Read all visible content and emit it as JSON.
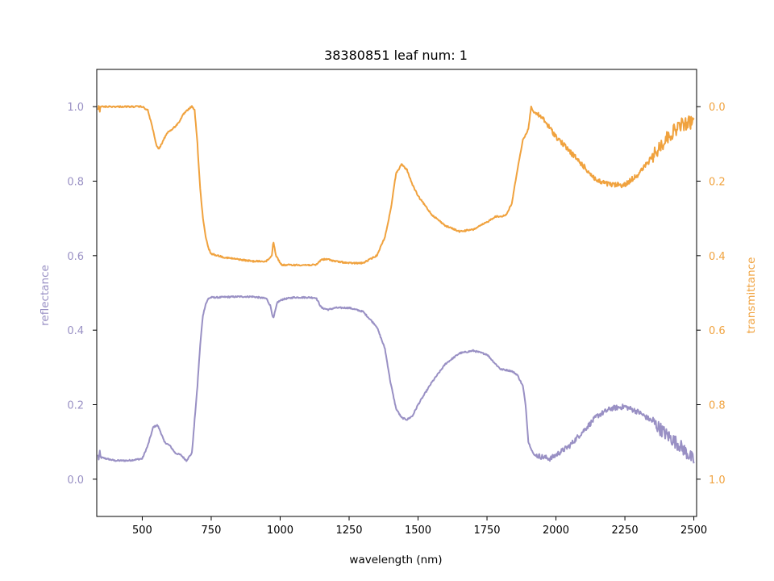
{
  "chart_data": {
    "type": "line",
    "title": "38380851 leaf num: 1",
    "xlabel": "wavelength (nm)",
    "xlim": [
      335,
      2510
    ],
    "x_ticks": [
      500,
      750,
      1000,
      1250,
      1500,
      1750,
      2000,
      2250,
      2500
    ],
    "left_axis": {
      "label": "reflectance",
      "color": "#9990c4",
      "ylim": [
        -0.1,
        1.1
      ],
      "ticks": [
        "0.0",
        "0.2",
        "0.4",
        "0.6",
        "0.8",
        "1.0"
      ]
    },
    "right_axis": {
      "label": "transmittance",
      "color": "#f0a23e",
      "ylim": [
        1.1,
        -0.1
      ],
      "inverted": true,
      "ticks": [
        "0.0",
        "0.2",
        "0.4",
        "0.6",
        "0.8",
        "1.0"
      ]
    },
    "series": [
      {
        "axis": "left",
        "color": "#9990c4",
        "noise": [
          [
            350,
            1930,
            0.002
          ],
          [
            1930,
            2350,
            0.007
          ],
          [
            2350,
            2500,
            0.018
          ]
        ],
        "x": [
          340,
          400,
          450,
          500,
          520,
          540,
          555,
          565,
          580,
          600,
          620,
          640,
          660,
          680,
          700,
          710,
          720,
          730,
          740,
          750,
          775,
          800,
          850,
          900,
          950,
          965,
          975,
          990,
          1010,
          1050,
          1100,
          1130,
          1150,
          1175,
          1200,
          1250,
          1300,
          1350,
          1380,
          1400,
          1420,
          1440,
          1460,
          1480,
          1500,
          1550,
          1600,
          1650,
          1700,
          1750,
          1780,
          1800,
          1820,
          1840,
          1860,
          1880,
          1890,
          1900,
          1920,
          1950,
          1980,
          2000,
          2050,
          2100,
          2150,
          2200,
          2250,
          2300,
          2350,
          2400,
          2450,
          2500
        ],
        "y": [
          0.06,
          0.05,
          0.05,
          0.055,
          0.09,
          0.14,
          0.145,
          0.13,
          0.1,
          0.09,
          0.07,
          0.065,
          0.05,
          0.07,
          0.25,
          0.36,
          0.44,
          0.47,
          0.485,
          0.488,
          0.488,
          0.489,
          0.49,
          0.49,
          0.485,
          0.465,
          0.43,
          0.475,
          0.483,
          0.488,
          0.488,
          0.487,
          0.46,
          0.455,
          0.46,
          0.46,
          0.45,
          0.41,
          0.35,
          0.26,
          0.19,
          0.165,
          0.16,
          0.17,
          0.2,
          0.26,
          0.31,
          0.338,
          0.345,
          0.335,
          0.31,
          0.295,
          0.293,
          0.29,
          0.28,
          0.25,
          0.2,
          0.1,
          0.065,
          0.06,
          0.055,
          0.065,
          0.09,
          0.13,
          0.17,
          0.19,
          0.195,
          0.18,
          0.155,
          0.12,
          0.09,
          0.05
        ]
      },
      {
        "axis": "right",
        "color": "#f0a23e",
        "noise": [
          [
            350,
            1930,
            0.002
          ],
          [
            1930,
            2350,
            0.007
          ],
          [
            2350,
            2500,
            0.018
          ]
        ],
        "x": [
          340,
          400,
          450,
          500,
          520,
          535,
          550,
          560,
          570,
          590,
          610,
          630,
          650,
          670,
          680,
          690,
          700,
          710,
          720,
          730,
          740,
          750,
          775,
          800,
          850,
          900,
          950,
          970,
          975,
          985,
          1005,
          1050,
          1100,
          1130,
          1150,
          1175,
          1200,
          1250,
          1300,
          1350,
          1380,
          1400,
          1420,
          1440,
          1460,
          1480,
          1500,
          1550,
          1600,
          1650,
          1700,
          1750,
          1780,
          1800,
          1820,
          1840,
          1860,
          1880,
          1900,
          1910,
          1920,
          1950,
          2000,
          2050,
          2100,
          2150,
          2200,
          2250,
          2300,
          2350,
          2400,
          2450,
          2500
        ],
        "y": [
          0.0,
          0.0,
          0.0,
          0.0,
          0.01,
          0.05,
          0.1,
          0.115,
          0.1,
          0.07,
          0.06,
          0.045,
          0.02,
          0.005,
          0.0,
          0.01,
          0.1,
          0.22,
          0.3,
          0.35,
          0.38,
          0.395,
          0.4,
          0.405,
          0.41,
          0.415,
          0.415,
          0.4,
          0.36,
          0.4,
          0.425,
          0.425,
          0.425,
          0.425,
          0.41,
          0.41,
          0.415,
          0.42,
          0.42,
          0.4,
          0.35,
          0.28,
          0.18,
          0.155,
          0.17,
          0.21,
          0.24,
          0.29,
          0.32,
          0.335,
          0.33,
          0.31,
          0.295,
          0.295,
          0.29,
          0.26,
          0.17,
          0.09,
          0.06,
          0.0,
          0.015,
          0.03,
          0.08,
          0.12,
          0.16,
          0.2,
          0.21,
          0.21,
          0.18,
          0.135,
          0.085,
          0.05,
          0.04
        ]
      }
    ]
  }
}
